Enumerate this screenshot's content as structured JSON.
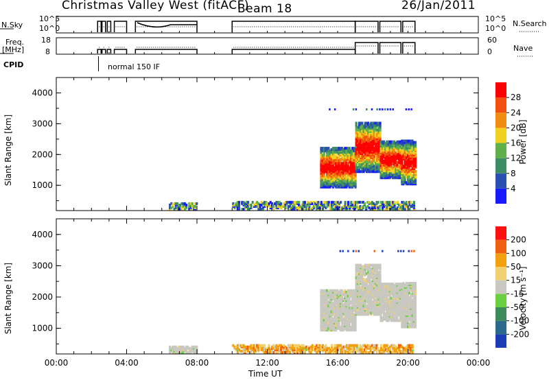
{
  "header": {
    "station": "Christmas Valley West (fitACF)",
    "beam": "Beam 18",
    "date": "26/Jan/2011"
  },
  "aux_panels": {
    "nsky_label": "N.Sky",
    "nsky_ticks": [
      "10^5",
      "10^0"
    ],
    "nsearch_label": "N.Search",
    "nsearch_ticks": [
      "10^5",
      "10^0"
    ],
    "freq_label_1": "Freq.",
    "freq_label_2": "[MHz]",
    "freq_ticks": [
      "18",
      "8"
    ],
    "nave_label": "Nave",
    "nave_ticks": [
      "60",
      "0"
    ],
    "cpid_label": "CPID",
    "cpid_text": "normal 150 IF"
  },
  "x_axis": {
    "label": "Time UT",
    "ticks": [
      "00:00",
      "04:00",
      "08:00",
      "12:00",
      "16:00",
      "20:00",
      "00:00"
    ]
  },
  "chart_data": [
    {
      "type": "heatmap",
      "name": "power",
      "ylabel": "Slant Range [km]",
      "yticks": [
        "1000",
        "2000",
        "3000",
        "4000"
      ],
      "ylim": [
        180,
        4500
      ],
      "xlim": [
        0,
        24
      ],
      "colorbar_label": "Power [dB]",
      "colorbar_ticks": [
        "4",
        "8",
        "12",
        "16",
        "20",
        "24",
        "28"
      ],
      "colors": [
        "#1a1aff",
        "#2a50b0",
        "#3c8c64",
        "#5fb04a",
        "#f0d020",
        "#f08c10",
        "#f05010",
        "#ff0000"
      ],
      "regions": [
        {
          "t": [
            6.4,
            8.0
          ],
          "r": [
            180,
            400
          ],
          "level": "low"
        },
        {
          "t": [
            10.0,
            20.3
          ],
          "r": [
            180,
            450
          ],
          "level": "low"
        },
        {
          "t": [
            15.0,
            17.0
          ],
          "r": [
            900,
            2200
          ],
          "level": "high"
        },
        {
          "t": [
            17.0,
            18.4
          ],
          "r": [
            1400,
            3000
          ],
          "level": "high"
        },
        {
          "t": [
            18.4,
            19.6
          ],
          "r": [
            1200,
            2400
          ],
          "level": "high"
        },
        {
          "t": [
            19.6,
            20.4
          ],
          "r": [
            1000,
            2400
          ],
          "level": "high"
        }
      ]
    },
    {
      "type": "heatmap",
      "name": "velocity",
      "ylabel": "Slant Range [km]",
      "yticks": [
        "1000",
        "2000",
        "3000",
        "4000"
      ],
      "ylim": [
        180,
        4500
      ],
      "xlim": [
        0,
        24
      ],
      "colorbar_label": "Velocity [m s⁻¹]",
      "colorbar_ticks": [
        "200",
        "100",
        "50",
        "15",
        "-15",
        "-50",
        "-100",
        "-200"
      ],
      "colors": [
        "#1a3cb4",
        "#2a6a8c",
        "#3c8c5a",
        "#6ad040",
        "#c8c8c0",
        "#f0d070",
        "#f0a010",
        "#f06010",
        "#ff1010"
      ],
      "regions": [
        {
          "t": [
            6.4,
            8.0
          ],
          "r": [
            180,
            400
          ],
          "level": "gray"
        },
        {
          "t": [
            10.0,
            20.3
          ],
          "r": [
            180,
            450
          ],
          "level": "orange"
        },
        {
          "t": [
            15.0,
            17.0
          ],
          "r": [
            900,
            2200
          ],
          "level": "gray"
        },
        {
          "t": [
            17.0,
            18.4
          ],
          "r": [
            1400,
            3000
          ],
          "level": "gray"
        },
        {
          "t": [
            18.4,
            19.6
          ],
          "r": [
            1200,
            2400
          ],
          "level": "gray"
        },
        {
          "t": [
            19.6,
            20.4
          ],
          "r": [
            1000,
            2400
          ],
          "level": "gray"
        }
      ]
    }
  ]
}
